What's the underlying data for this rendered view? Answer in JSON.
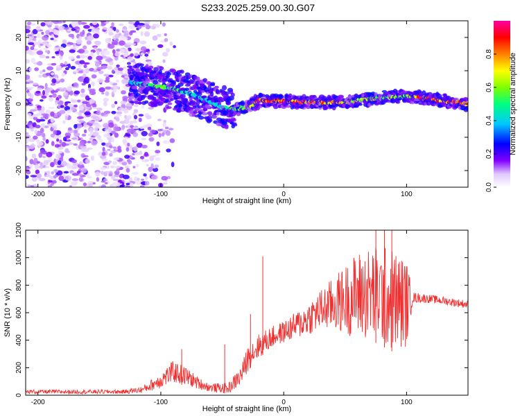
{
  "title": "S233.2025.259.00.30.G07",
  "chart_data": [
    {
      "type": "heatmap",
      "xlabel": "Height of straight line (km)",
      "ylabel": "Frequency (Hz)",
      "xlim": [
        -210,
        150
      ],
      "ylim": [
        -25,
        25
      ],
      "xticks": [
        -200,
        -100,
        0,
        100
      ],
      "yticks": [
        -20,
        -10,
        0,
        10,
        20
      ],
      "colorbar": {
        "label": "Normalized spectral amplitude",
        "range": [
          0.0,
          1.0
        ],
        "ticks": [
          "0.0",
          "0.2",
          "0.4",
          "0.6",
          "0.8"
        ],
        "tick_values": [
          0.0,
          0.2,
          0.4,
          0.6,
          0.8
        ],
        "colors": [
          "#ffffff",
          "#c8a8f0",
          "#8000ff",
          "#0000ff",
          "#00c8ff",
          "#00ff80",
          "#80ff00",
          "#ffff00",
          "#ff8000",
          "#ff0000",
          "#ff00a0"
        ]
      },
      "ridge": [
        {
          "x": -125,
          "y": 6.5,
          "amp": 0.45
        },
        {
          "x": -110,
          "y": 5.5,
          "amp": 0.55
        },
        {
          "x": -95,
          "y": 5.0,
          "amp": 0.6
        },
        {
          "x": -80,
          "y": 3.5,
          "amp": 0.5
        },
        {
          "x": -65,
          "y": 1.5,
          "amp": 0.45
        },
        {
          "x": -50,
          "y": -1.0,
          "amp": 0.45
        },
        {
          "x": -40,
          "y": -1.5,
          "amp": 0.6
        },
        {
          "x": -30,
          "y": -1.0,
          "amp": 0.65
        },
        {
          "x": -20,
          "y": 1.0,
          "amp": 0.9
        },
        {
          "x": 0,
          "y": 1.0,
          "amp": 0.95
        },
        {
          "x": 20,
          "y": 0.5,
          "amp": 0.9
        },
        {
          "x": 40,
          "y": 0.5,
          "amp": 0.85
        },
        {
          "x": 60,
          "y": 1.0,
          "amp": 0.7
        },
        {
          "x": 80,
          "y": 2.0,
          "amp": 0.65
        },
        {
          "x": 100,
          "y": 2.5,
          "amp": 0.6
        },
        {
          "x": 110,
          "y": 2.0,
          "amp": 0.95
        },
        {
          "x": 130,
          "y": 1.0,
          "amp": 0.9
        },
        {
          "x": 150,
          "y": 0.0,
          "amp": 0.85
        }
      ],
      "noise_region": {
        "x_from": -210,
        "x_to": -125,
        "y_from": -25,
        "y_to": 25,
        "amp": 0.2
      }
    },
    {
      "type": "line",
      "xlabel": "Height of straight line (km)",
      "ylabel": "SNR (10 * v/v)",
      "xlim": [
        -210,
        150
      ],
      "ylim": [
        0,
        1200
      ],
      "xticks": [
        -200,
        -100,
        0,
        100
      ],
      "yticks": [
        0,
        200,
        400,
        600,
        800,
        1000,
        1200
      ],
      "color": "#f03030",
      "envelope": {
        "x": [
          -210,
          -130,
          -115,
          -100,
          -90,
          -80,
          -70,
          -60,
          -45,
          -35,
          -28,
          -20,
          -10,
          0,
          15,
          30,
          45,
          60,
          75,
          90,
          100,
          105,
          120,
          135,
          150
        ],
        "mean": [
          25,
          25,
          40,
          110,
          170,
          140,
          90,
          55,
          50,
          140,
          290,
          360,
          420,
          460,
          530,
          620,
          680,
          730,
          740,
          690,
          670,
          710,
          700,
          680,
          660
        ],
        "spread": [
          15,
          15,
          25,
          60,
          80,
          70,
          45,
          30,
          40,
          70,
          100,
          90,
          80,
          80,
          110,
          150,
          220,
          320,
          360,
          380,
          320,
          40,
          30,
          30,
          30
        ]
      },
      "spikes": [
        {
          "x": -83,
          "y": 335
        },
        {
          "x": -48,
          "y": 370
        },
        {
          "x": -27,
          "y": 590
        },
        {
          "x": -17,
          "y": 1010
        },
        {
          "x": 75,
          "y": 1200
        },
        {
          "x": 82,
          "y": 1200
        },
        {
          "x": 88,
          "y": 1200
        }
      ]
    }
  ]
}
